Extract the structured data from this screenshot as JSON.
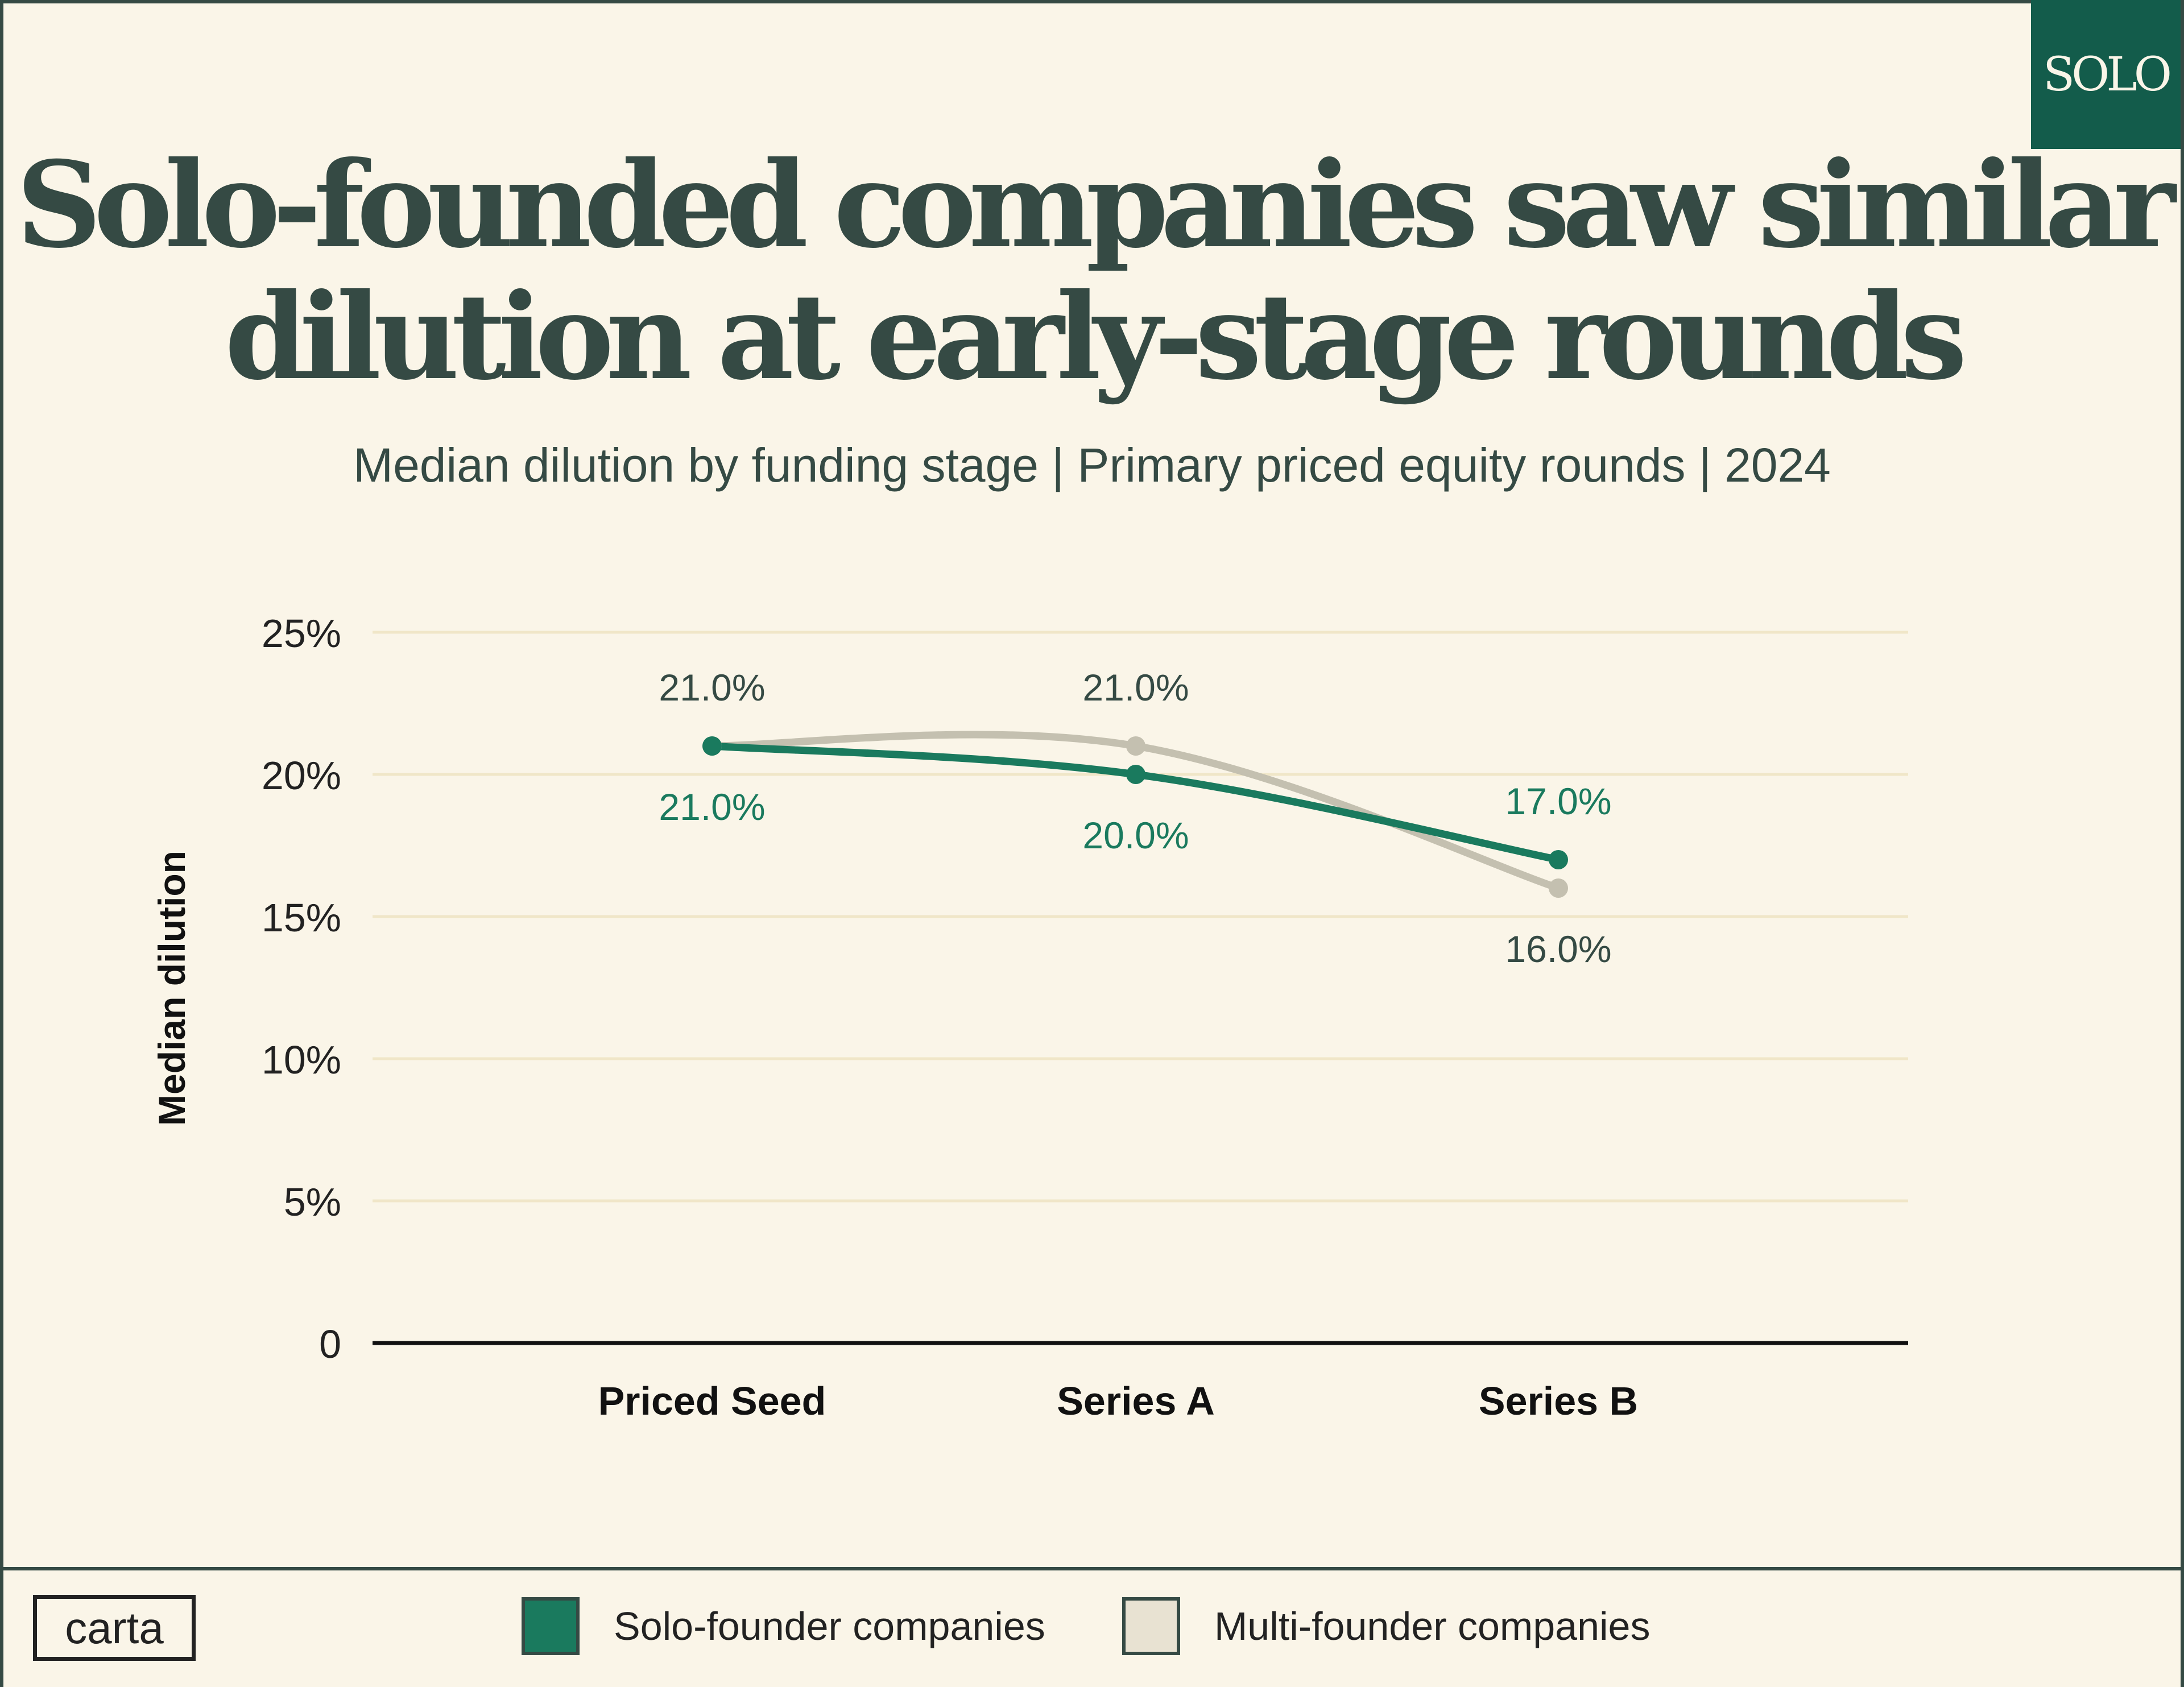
{
  "badge": "SOLO",
  "title_lines": [
    "Solo-founded companies saw similar",
    "dilution at early-stage rounds"
  ],
  "subtitle": "Median dilution by funding stage | Primary priced equity rounds | 2024",
  "colors": {
    "background": "#faf5e8",
    "ink": "#354a44",
    "solo": "#1a7a5e",
    "multi": "#c4c0b0",
    "multi_swatch": "#e8e2d2",
    "gridline": "#f0e6c8",
    "axis": "#111111"
  },
  "chart_data": {
    "type": "line",
    "title": "Solo-founded companies saw similar dilution at early-stage rounds",
    "xlabel": "",
    "ylabel": "Median dilution",
    "categories": [
      "Priced Seed",
      "Series A",
      "Series B"
    ],
    "ylim": [
      0,
      25
    ],
    "yticks": [
      0,
      5,
      10,
      15,
      20,
      25
    ],
    "ytick_labels": [
      "0",
      "5%",
      "10%",
      "15%",
      "20%",
      "25%"
    ],
    "grid": true,
    "series": [
      {
        "name": "Solo-founder companies",
        "values": [
          21.0,
          20.0,
          17.0
        ],
        "labels": [
          "21.0%",
          "20.0%",
          "17.0%"
        ]
      },
      {
        "name": "Multi-founder companies",
        "values": [
          21.0,
          21.0,
          16.0
        ],
        "labels": [
          "21.0%",
          "21.0%",
          "16.0%"
        ]
      }
    ],
    "legend_position": "bottom"
  },
  "footer": {
    "logo": "carta",
    "legend": [
      "Solo-founder companies",
      "Multi-founder companies"
    ]
  }
}
